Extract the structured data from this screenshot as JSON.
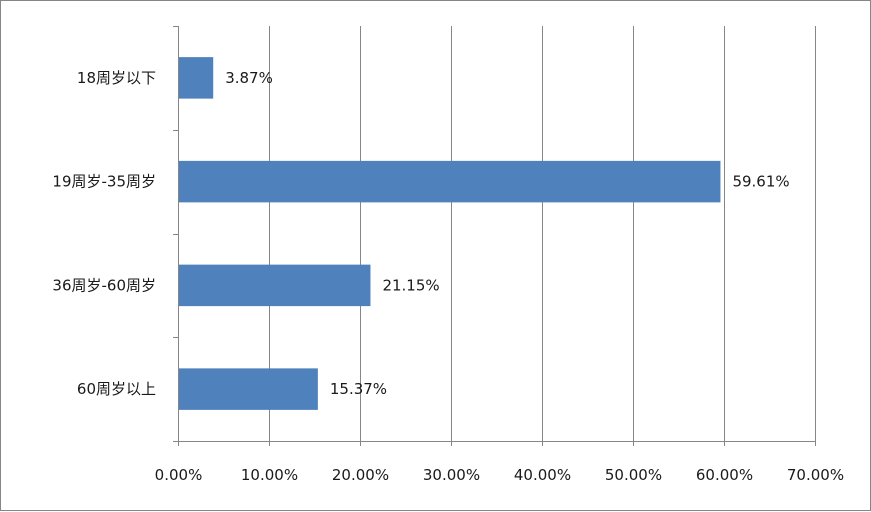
{
  "chart_data": {
    "type": "bar",
    "orientation": "horizontal",
    "categories": [
      "18周岁以下",
      "19周岁-35周岁",
      "36周岁-60周岁",
      "60周岁以上"
    ],
    "values": [
      3.87,
      59.61,
      21.15,
      15.37
    ],
    "data_labels": [
      "3.87%",
      "59.61%",
      "21.15%",
      "15.37%"
    ],
    "xticks": [
      "0.00%",
      "10.00%",
      "20.00%",
      "30.00%",
      "40.00%",
      "50.00%",
      "60.00%",
      "70.00%"
    ],
    "xlim": [
      0,
      70
    ],
    "grid": true,
    "legend": "none",
    "bar_color": "#4f81bd"
  }
}
